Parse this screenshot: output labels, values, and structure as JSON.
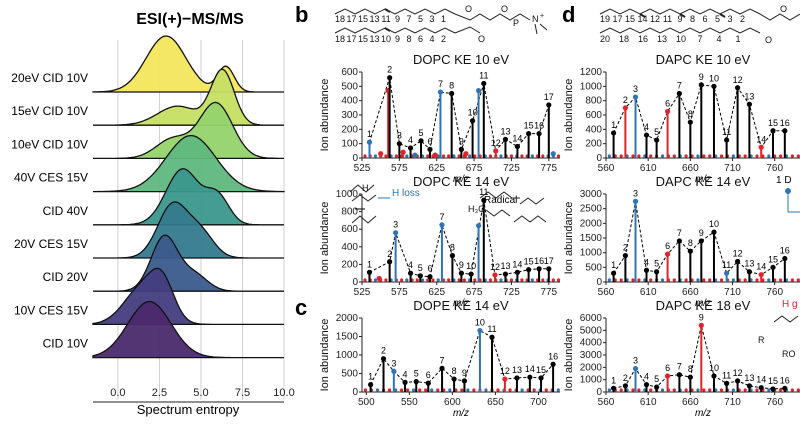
{
  "panel_letters": {
    "b": "b",
    "c": "c",
    "d": "d"
  },
  "left": {
    "title": "ESI(+)−MS/MS",
    "xlabel": "Spectrum entropy",
    "xticks": [
      "0.0",
      "2.5",
      "5.0",
      "7.5",
      "10.0"
    ],
    "rows": [
      {
        "label": "20eV CID 10V",
        "color": "#f2e65b"
      },
      {
        "label": "15eV CID 10V",
        "color": "#c5df63"
      },
      {
        "label": "10eV CID 10V",
        "color": "#95d36c"
      },
      {
        "label": "40V CES 15V",
        "color": "#5fb880"
      },
      {
        "label": "CID 40V",
        "color": "#3a978c"
      },
      {
        "label": "20V CES 15V",
        "color": "#347a8e"
      },
      {
        "label": "CID 20V",
        "color": "#3b5b8c"
      },
      {
        "label": "10V CES 15V",
        "color": "#453d80"
      },
      {
        "label": "CID 10V",
        "color": "#4b2a6c"
      }
    ]
  },
  "middle": {
    "dopc_numbers_top": [
      "18",
      "17",
      "15",
      "13",
      "11",
      "9",
      "7",
      "5",
      "3",
      "1"
    ],
    "dopc_numbers_bottom": [
      "18",
      "17",
      "15",
      "13",
      "10",
      "9",
      "8",
      "6",
      "4",
      "2"
    ],
    "spectra": [
      {
        "title": "DOPC KE 10 eV",
        "yticks": [
          "0",
          "100",
          "200",
          "300",
          "400",
          "500",
          "600"
        ],
        "xticks": [
          "525",
          "575",
          "625",
          "675",
          "725",
          "775"
        ],
        "ylabel": "Ion abundance",
        "xlabel": "m/z"
      },
      {
        "title": "DOPC KE 14 eV",
        "yticks": [
          "0",
          "200",
          "400",
          "600",
          "800",
          "1000"
        ],
        "xticks": [
          "525",
          "575",
          "625",
          "675",
          "725",
          "775"
        ],
        "ylabel": "Ion abundance",
        "xlabel": "m/z"
      },
      {
        "title": "DOPE KE 14 eV",
        "yticks": [
          "0",
          "500",
          "1000",
          "1500",
          "2000"
        ],
        "xticks": [
          "500",
          "550",
          "600",
          "650",
          "700"
        ],
        "ylabel": "Ion abundance",
        "xlabel": "m/z"
      }
    ],
    "annotations": {
      "h_loss": "H loss",
      "radical": "Radical",
      "ch3": "H₃C",
      "h": "H"
    }
  },
  "right": {
    "dapc_numbers_top": [
      "19",
      "17",
      "15",
      "14",
      "12",
      "11",
      "9",
      "8",
      "6",
      "5",
      "3",
      "2"
    ],
    "dapc_numbers_bottom": [
      "20",
      "18",
      "16",
      "13",
      "10",
      "7",
      "4",
      "1"
    ],
    "spectra": [
      {
        "title": "DAPC KE 10 eV",
        "yticks": [
          "0",
          "200",
          "400",
          "600",
          "800",
          "1000",
          "1200"
        ],
        "xticks": [
          "560",
          "610",
          "660",
          "710",
          "760"
        ],
        "ylabel": "Ion abundance",
        "xlabel": "m/z"
      },
      {
        "title": "DAPC KE 14 eV",
        "yticks": [
          "0",
          "500",
          "1000",
          "1500",
          "2000",
          "2500",
          "3000"
        ],
        "xticks": [
          "560",
          "610",
          "660",
          "710",
          "760"
        ],
        "ylabel": "Ion abundance",
        "xlabel": "m/z"
      },
      {
        "title": "DAPC KE 18 eV",
        "yticks": [
          "0",
          "1000",
          "2000",
          "3000",
          "4000",
          "5000",
          "6000"
        ],
        "xticks": [
          "560",
          "610",
          "660",
          "710",
          "760"
        ],
        "ylabel": "Ion abundance",
        "xlabel": "m/z"
      }
    ],
    "cut_labels": {
      "one_d": "1 D",
      "h_g": "H g",
      "ro": "RO",
      "r": "R"
    }
  },
  "chart_data": [
    {
      "type": "area",
      "title": "ESI(+)−MS/MS",
      "xlabel": "Spectrum entropy",
      "xlim": [
        -1.5,
        10.0
      ],
      "series": [
        {
          "name": "20eV CID 10V",
          "modes": [
            [
              2.9,
              1.2,
              1.0
            ],
            [
              6.5,
              0.5,
              0.45
            ]
          ]
        },
        {
          "name": "15eV CID 10V",
          "modes": [
            [
              3.6,
              1.2,
              0.35
            ],
            [
              6.3,
              0.7,
              1.0
            ]
          ]
        },
        {
          "name": "10eV CID 10V",
          "modes": [
            [
              3.3,
              1.0,
              0.35
            ],
            [
              5.9,
              1.0,
              1.0
            ]
          ]
        },
        {
          "name": "40V CES 15V",
          "modes": [
            [
              4.4,
              1.5,
              1.0
            ]
          ]
        },
        {
          "name": "CID 40V",
          "modes": [
            [
              3.9,
              1.0,
              1.0
            ],
            [
              6.0,
              0.7,
              0.5
            ]
          ]
        },
        {
          "name": "20V CES 15V",
          "modes": [
            [
              3.3,
              0.9,
              1.0
            ],
            [
              5.0,
              0.8,
              0.45
            ]
          ]
        },
        {
          "name": "CID 20V",
          "modes": [
            [
              2.8,
              0.8,
              1.0
            ],
            [
              4.6,
              0.8,
              0.3
            ]
          ]
        },
        {
          "name": "10V CES 15V",
          "modes": [
            [
              1.5,
              1.1,
              0.7
            ],
            [
              2.7,
              0.7,
              0.6
            ]
          ]
        },
        {
          "name": "CID 10V",
          "modes": [
            [
              1.9,
              1.3,
              1.0
            ]
          ]
        }
      ]
    },
    {
      "type": "bar",
      "title": "DOPC KE 10 eV",
      "xlim": [
        525,
        790
      ],
      "ylim": [
        0,
        600
      ],
      "peaks": [
        {
          "x": 535,
          "y": 110,
          "c": "#2e75b6",
          "l": "1"
        },
        {
          "x": 550,
          "y": 30,
          "c": "#e0232b"
        },
        {
          "x": 560,
          "y": 470,
          "c": "#e0232b"
        },
        {
          "x": 562,
          "y": 560,
          "c": "#000000",
          "l": "2"
        },
        {
          "x": 575,
          "y": 100,
          "c": "#000000",
          "l": "3"
        },
        {
          "x": 580,
          "y": 40,
          "c": "#e0232b"
        },
        {
          "x": 590,
          "y": 70,
          "c": "#000000",
          "l": "4"
        },
        {
          "x": 596,
          "y": 20,
          "c": "#2e75b6"
        },
        {
          "x": 604,
          "y": 120,
          "c": "#000000",
          "l": "5"
        },
        {
          "x": 616,
          "y": 60,
          "c": "#000000",
          "l": "6"
        },
        {
          "x": 623,
          "y": 20,
          "c": "#e0232b"
        },
        {
          "x": 630,
          "y": 460,
          "c": "#2e75b6",
          "l": "7"
        },
        {
          "x": 645,
          "y": 450,
          "c": "#000000",
          "l": "8"
        },
        {
          "x": 658,
          "y": 60,
          "c": "#000000",
          "l": "9"
        },
        {
          "x": 664,
          "y": 30,
          "c": "#e0232b"
        },
        {
          "x": 673,
          "y": 260,
          "c": "#000000",
          "l": "10"
        },
        {
          "x": 681,
          "y": 470,
          "c": "#2e75b6"
        },
        {
          "x": 688,
          "y": 520,
          "c": "#000000",
          "l": "11"
        },
        {
          "x": 704,
          "y": 50,
          "c": "#e0232b",
          "l": "12"
        },
        {
          "x": 717,
          "y": 130,
          "c": "#000000",
          "l": "13"
        },
        {
          "x": 733,
          "y": 80,
          "c": "#000000",
          "l": "14"
        },
        {
          "x": 748,
          "y": 170,
          "c": "#000000",
          "l": "15"
        },
        {
          "x": 762,
          "y": 170,
          "c": "#000000",
          "l": "16"
        },
        {
          "x": 775,
          "y": 370,
          "c": "#000000",
          "l": "17"
        },
        {
          "x": 781,
          "y": 30,
          "c": "#2e75b6"
        }
      ]
    },
    {
      "type": "bar",
      "title": "DOPC KE 14 eV",
      "xlim": [
        525,
        790
      ],
      "ylim": [
        0,
        1000
      ],
      "peaks": [
        {
          "x": 535,
          "y": 110,
          "c": "#000000",
          "l": "1"
        },
        {
          "x": 548,
          "y": 40,
          "c": "#e0232b"
        },
        {
          "x": 562,
          "y": 230,
          "c": "#000000",
          "l": "2"
        },
        {
          "x": 570,
          "y": 560,
          "c": "#2e75b6",
          "l": "3"
        },
        {
          "x": 590,
          "y": 100,
          "c": "#000000",
          "l": "4"
        },
        {
          "x": 603,
          "y": 70,
          "c": "#000000",
          "l": "5"
        },
        {
          "x": 616,
          "y": 60,
          "c": "#000000",
          "l": "6"
        },
        {
          "x": 632,
          "y": 650,
          "c": "#2e75b6",
          "l": "7"
        },
        {
          "x": 646,
          "y": 300,
          "c": "#000000",
          "l": "8"
        },
        {
          "x": 658,
          "y": 100,
          "c": "#000000",
          "l": "9"
        },
        {
          "x": 671,
          "y": 90,
          "c": "#000000",
          "l": "10"
        },
        {
          "x": 681,
          "y": 640,
          "c": "#2e75b6"
        },
        {
          "x": 688,
          "y": 930,
          "c": "#000000",
          "l": "11"
        },
        {
          "x": 703,
          "y": 80,
          "c": "#e0232b",
          "l": "12"
        },
        {
          "x": 717,
          "y": 90,
          "c": "#000000",
          "l": "13"
        },
        {
          "x": 733,
          "y": 110,
          "c": "#000000",
          "l": "14"
        },
        {
          "x": 748,
          "y": 140,
          "c": "#000000",
          "l": "15"
        },
        {
          "x": 762,
          "y": 150,
          "c": "#000000",
          "l": "16"
        },
        {
          "x": 775,
          "y": 150,
          "c": "#000000",
          "l": "17"
        }
      ]
    },
    {
      "type": "bar",
      "title": "DOPE KE 14 eV",
      "xlim": [
        495,
        725
      ],
      "ylim": [
        0,
        2000
      ],
      "peaks": [
        {
          "x": 505,
          "y": 200,
          "c": "#000000",
          "l": "1"
        },
        {
          "x": 520,
          "y": 900,
          "c": "#000000",
          "l": "2"
        },
        {
          "x": 532,
          "y": 560,
          "c": "#2e75b6",
          "l": "3"
        },
        {
          "x": 545,
          "y": 260,
          "c": "#000000",
          "l": "4"
        },
        {
          "x": 558,
          "y": 280,
          "c": "#000000",
          "l": "5"
        },
        {
          "x": 572,
          "y": 240,
          "c": "#000000",
          "l": "6"
        },
        {
          "x": 588,
          "y": 640,
          "c": "#000000",
          "l": "7"
        },
        {
          "x": 602,
          "y": 350,
          "c": "#000000",
          "l": "8"
        },
        {
          "x": 614,
          "y": 300,
          "c": "#000000",
          "l": "9"
        },
        {
          "x": 632,
          "y": 1660,
          "c": "#2e75b6",
          "l": "10"
        },
        {
          "x": 646,
          "y": 1480,
          "c": "#000000",
          "l": "11"
        },
        {
          "x": 661,
          "y": 350,
          "c": "#e0232b",
          "l": "12"
        },
        {
          "x": 675,
          "y": 380,
          "c": "#000000",
          "l": "13"
        },
        {
          "x": 690,
          "y": 400,
          "c": "#000000",
          "l": "14"
        },
        {
          "x": 703,
          "y": 380,
          "c": "#000000",
          "l": "15"
        },
        {
          "x": 717,
          "y": 750,
          "c": "#000000",
          "l": "16"
        }
      ]
    },
    {
      "type": "bar",
      "title": "DAPC KE 10 eV",
      "xlim": [
        560,
        790
      ],
      "ylim": [
        0,
        1200
      ],
      "peaks": [
        {
          "x": 569,
          "y": 350,
          "c": "#000000",
          "l": "1"
        },
        {
          "x": 583,
          "y": 700,
          "c": "#e0232b",
          "l": "2"
        },
        {
          "x": 595,
          "y": 850,
          "c": "#2e75b6",
          "l": "3"
        },
        {
          "x": 608,
          "y": 320,
          "c": "#000000",
          "l": "4"
        },
        {
          "x": 620,
          "y": 250,
          "c": "#000000",
          "l": "5"
        },
        {
          "x": 633,
          "y": 650,
          "c": "#e0232b",
          "l": "6"
        },
        {
          "x": 647,
          "y": 900,
          "c": "#000000",
          "l": "7"
        },
        {
          "x": 660,
          "y": 500,
          "c": "#000000",
          "l": "8"
        },
        {
          "x": 673,
          "y": 1020,
          "c": "#000000",
          "l": "9"
        },
        {
          "x": 688,
          "y": 1000,
          "c": "#000000",
          "l": "10"
        },
        {
          "x": 703,
          "y": 250,
          "c": "#000000",
          "l": "11"
        },
        {
          "x": 716,
          "y": 980,
          "c": "#000000",
          "l": "12"
        },
        {
          "x": 730,
          "y": 750,
          "c": "#000000",
          "l": "13"
        },
        {
          "x": 744,
          "y": 150,
          "c": "#e0232b",
          "l": "14"
        },
        {
          "x": 758,
          "y": 380,
          "c": "#000000",
          "l": "15"
        },
        {
          "x": 772,
          "y": 380,
          "c": "#000000",
          "l": "16"
        }
      ]
    },
    {
      "type": "bar",
      "title": "DAPC KE 14 eV",
      "xlim": [
        560,
        790
      ],
      "ylim": [
        0,
        3000
      ],
      "peaks": [
        {
          "x": 569,
          "y": 300,
          "c": "#000000",
          "l": "1"
        },
        {
          "x": 583,
          "y": 900,
          "c": "#000000",
          "l": "2"
        },
        {
          "x": 595,
          "y": 2750,
          "c": "#2e75b6",
          "l": "3"
        },
        {
          "x": 608,
          "y": 400,
          "c": "#000000",
          "l": "4"
        },
        {
          "x": 620,
          "y": 350,
          "c": "#000000",
          "l": "5"
        },
        {
          "x": 633,
          "y": 950,
          "c": "#e0232b",
          "l": "6"
        },
        {
          "x": 647,
          "y": 1400,
          "c": "#000000",
          "l": "7"
        },
        {
          "x": 660,
          "y": 1050,
          "c": "#000000",
          "l": "8"
        },
        {
          "x": 673,
          "y": 1400,
          "c": "#000000",
          "l": "9"
        },
        {
          "x": 688,
          "y": 1700,
          "c": "#000000",
          "l": "10"
        },
        {
          "x": 703,
          "y": 300,
          "c": "#2e75b6",
          "l": "11"
        },
        {
          "x": 716,
          "y": 700,
          "c": "#000000",
          "l": "12"
        },
        {
          "x": 730,
          "y": 350,
          "c": "#000000",
          "l": "13"
        },
        {
          "x": 744,
          "y": 250,
          "c": "#e0232b",
          "l": "14"
        },
        {
          "x": 758,
          "y": 500,
          "c": "#000000",
          "l": "15"
        },
        {
          "x": 772,
          "y": 800,
          "c": "#000000",
          "l": "16"
        }
      ]
    },
    {
      "type": "bar",
      "title": "DAPC KE 18 eV",
      "xlim": [
        560,
        790
      ],
      "ylim": [
        0,
        6000
      ],
      "peaks": [
        {
          "x": 569,
          "y": 300,
          "c": "#000000",
          "l": "1"
        },
        {
          "x": 583,
          "y": 500,
          "c": "#000000",
          "l": "2"
        },
        {
          "x": 595,
          "y": 1900,
          "c": "#2e75b6",
          "l": "3"
        },
        {
          "x": 608,
          "y": 600,
          "c": "#000000",
          "l": "4"
        },
        {
          "x": 620,
          "y": 400,
          "c": "#000000",
          "l": "5"
        },
        {
          "x": 633,
          "y": 1300,
          "c": "#e0232b",
          "l": "6"
        },
        {
          "x": 647,
          "y": 1400,
          "c": "#000000",
          "l": "7"
        },
        {
          "x": 660,
          "y": 1200,
          "c": "#000000",
          "l": "8"
        },
        {
          "x": 673,
          "y": 5400,
          "c": "#e0232b",
          "l": "9"
        },
        {
          "x": 688,
          "y": 1300,
          "c": "#000000",
          "l": "10"
        },
        {
          "x": 703,
          "y": 700,
          "c": "#000000",
          "l": "11"
        },
        {
          "x": 716,
          "y": 900,
          "c": "#000000",
          "l": "12"
        },
        {
          "x": 730,
          "y": 500,
          "c": "#000000",
          "l": "13"
        },
        {
          "x": 744,
          "y": 350,
          "c": "#000000",
          "l": "14"
        },
        {
          "x": 758,
          "y": 250,
          "c": "#000000",
          "l": "15"
        },
        {
          "x": 772,
          "y": 300,
          "c": "#000000",
          "l": "16"
        }
      ]
    }
  ]
}
